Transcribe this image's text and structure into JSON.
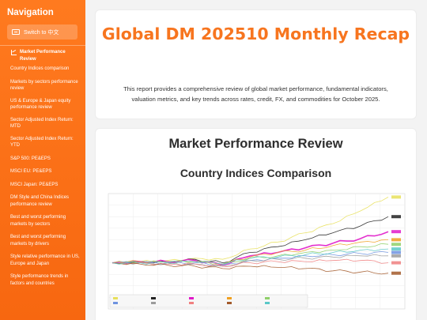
{
  "sidebar": {
    "title": "Navigation",
    "switch_label": "Switch to 中文",
    "items": [
      {
        "label": "Market Performance Review",
        "active": true
      },
      {
        "label": "Country Indices comparison"
      },
      {
        "label": "Markets by sectors performance review"
      },
      {
        "label": "US & Europe & Japan equity performance review"
      },
      {
        "label": "Sector Adjusted Index Return: MTD"
      },
      {
        "label": "Sector Adjusted Index Return: YTD"
      },
      {
        "label": "S&P 500: PE&EPS"
      },
      {
        "label": "MSCI EU: PE&EPS"
      },
      {
        "label": "MSCI Japan: PE&EPS"
      },
      {
        "label": "DM Style and China Indices performance review"
      },
      {
        "label": "Best and worst performing markets by sectors"
      },
      {
        "label": "Best and worst performing markets by drivers"
      },
      {
        "label": "Style relative performance in US, Europe and Japan"
      },
      {
        "label": "Style performance trends in factors and countries"
      }
    ]
  },
  "header": {
    "title": "Global DM 202510 Monthly Recap",
    "description": "This report provides a comprehensive review of global market performance, fundamental indicators, valuation metrics, and key trends across rates, credit, FX, and commodities for October 2025."
  },
  "section": {
    "title": "Market Performance Review",
    "subtitle": "Country Indices Comparison"
  },
  "chart_data": {
    "type": "line",
    "title": "",
    "xlabel": "",
    "ylabel": "",
    "x": [
      0,
      10,
      20,
      30,
      40,
      50,
      60,
      70,
      80,
      90,
      100
    ],
    "ylim": [
      0,
      100
    ],
    "grid": true,
    "series": [
      {
        "color": "#e8e05a",
        "values": [
          40,
          41,
          42,
          44,
          43,
          52,
          58,
          66,
          74,
          85,
          97
        ]
      },
      {
        "color": "#222222",
        "values": [
          40,
          41,
          41,
          43,
          40,
          49,
          54,
          60,
          66,
          72,
          80
        ]
      },
      {
        "color": "#e01ac9",
        "values": [
          40,
          41,
          41,
          42,
          38,
          46,
          49,
          53,
          57,
          61,
          67
        ]
      },
      {
        "color": "#f0a020",
        "values": [
          40,
          41,
          40,
          41,
          39,
          45,
          49,
          51,
          55,
          58,
          60
        ]
      },
      {
        "color": "#8fd06a",
        "values": [
          40,
          40,
          41,
          41,
          38,
          44,
          46,
          49,
          51,
          54,
          56
        ]
      },
      {
        "color": "#6f93e0",
        "values": [
          40,
          40,
          40,
          40,
          38,
          42,
          44,
          46,
          47,
          48,
          49
        ]
      },
      {
        "color": "#9c9c9c",
        "values": [
          40,
          40,
          39,
          39,
          37,
          42,
          43,
          44,
          45,
          46,
          46
        ]
      },
      {
        "color": "#f08080",
        "values": [
          40,
          40,
          39,
          39,
          37,
          40,
          41,
          41,
          42,
          42,
          40
        ]
      },
      {
        "color": "#a35a2a",
        "values": [
          40,
          39,
          38,
          37,
          35,
          37,
          36,
          35,
          33,
          32,
          31
        ]
      },
      {
        "color": "#5ac8c8",
        "values": [
          40,
          40,
          40,
          41,
          39,
          44,
          45,
          47,
          49,
          51,
          52
        ]
      }
    ]
  }
}
